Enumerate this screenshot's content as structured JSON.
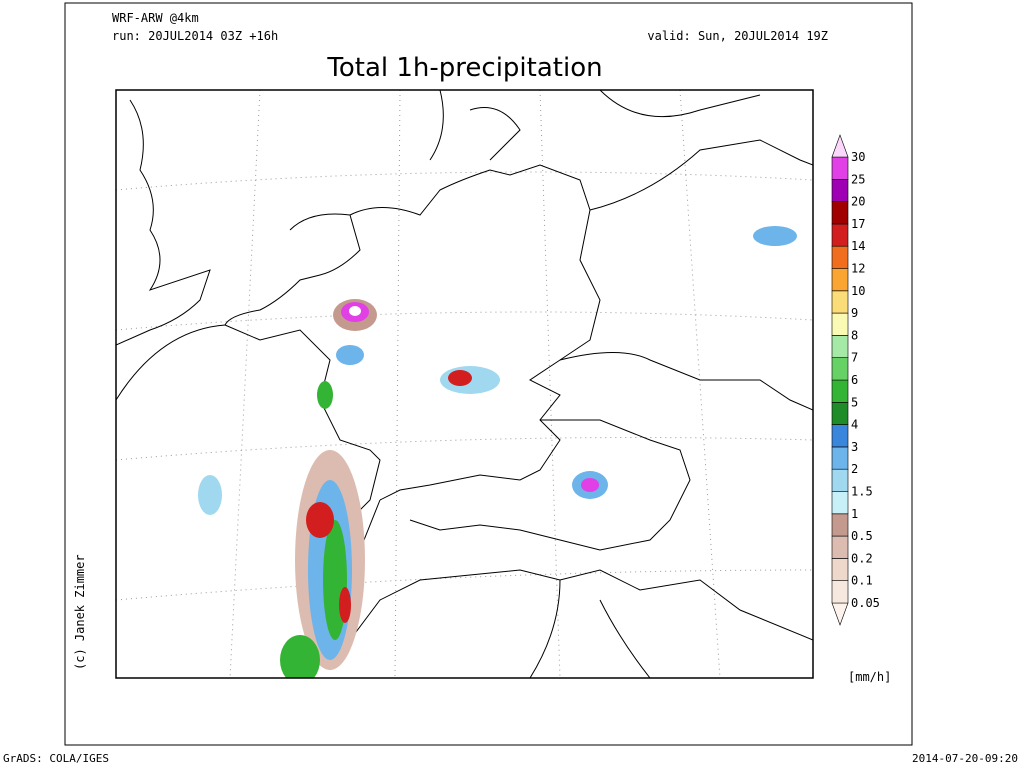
{
  "header": {
    "model": "WRF-ARW @4km",
    "run": "run: 20JUL2014 03Z +16h",
    "valid": "valid: Sun, 20JUL2014 19Z",
    "title": "Total 1h-precipitation"
  },
  "colorbar": {
    "levels": [
      0.05,
      0.1,
      0.2,
      0.5,
      1,
      1.5,
      2,
      3,
      4,
      5,
      6,
      7,
      8,
      9,
      10,
      12,
      14,
      17,
      20,
      25,
      30
    ],
    "colors": [
      "#fdf3ec",
      "#f6e8de",
      "#eed8cc",
      "#dcbcb0",
      "#c49a8e",
      "#c8f0f8",
      "#a0d8f0",
      "#6cb4ea",
      "#3a86dc",
      "#1e8c28",
      "#34b434",
      "#66d266",
      "#a6e8a6",
      "#fafab4",
      "#fadc78",
      "#faa532",
      "#f06e1e",
      "#d21e1e",
      "#a00000",
      "#a000b4",
      "#e040e6",
      "#fbd8fb"
    ],
    "unit": "[mm/h]"
  },
  "credit": "(c) Janek Zimmer",
  "footer": {
    "left": "GrADS: COLA/IGES",
    "right": "2014-07-20-09:20"
  }
}
